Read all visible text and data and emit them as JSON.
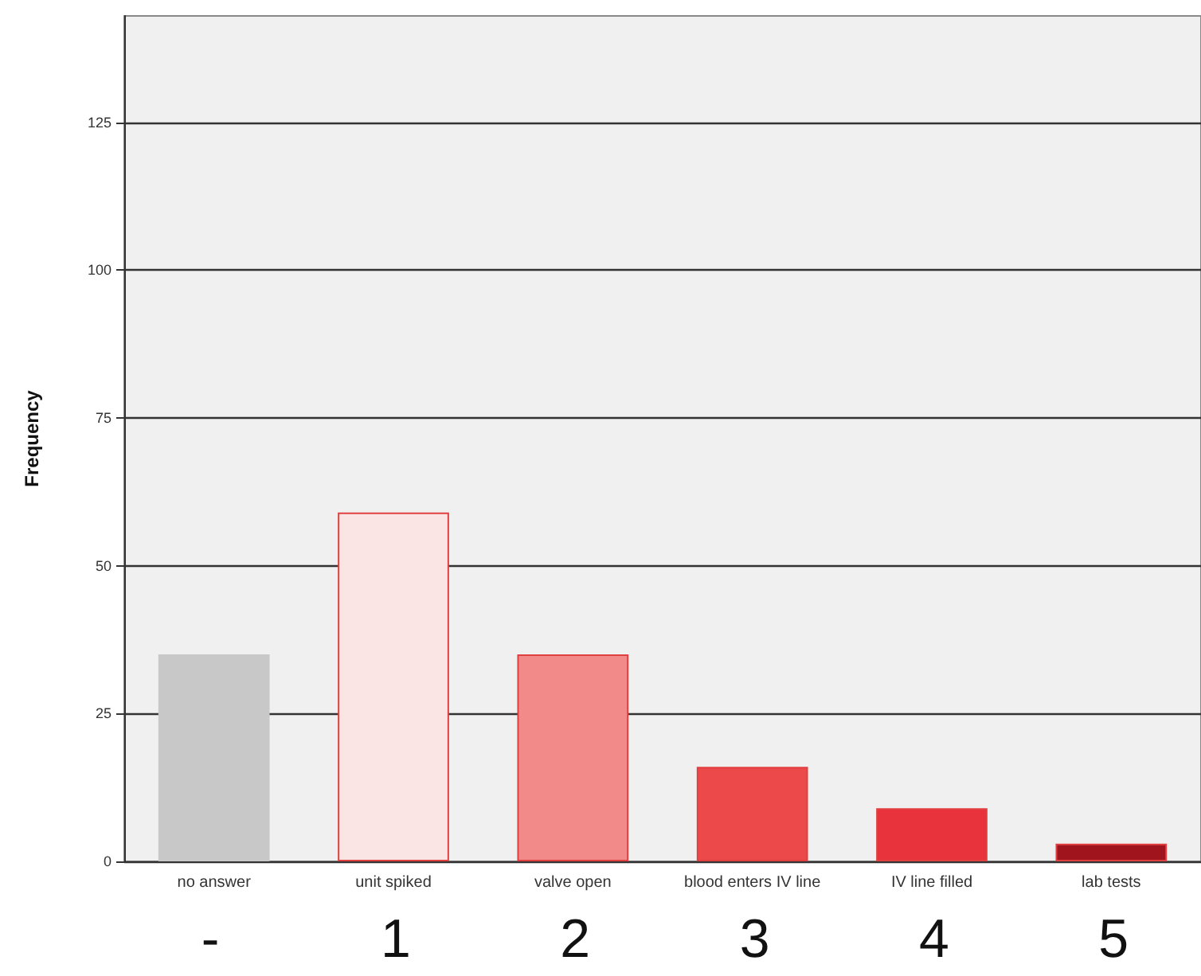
{
  "chart_data": {
    "type": "bar",
    "ylabel": "Frequency",
    "categories": [
      "no answer",
      "unit spiked",
      "valve open",
      "blood enters IV line",
      "IV line filled",
      "lab tests"
    ],
    "values": [
      35,
      59,
      35,
      16,
      9,
      3
    ],
    "colors": [
      "#c8c8c8",
      "#fbe4e4",
      "#f28a8a",
      "#ec4a4a",
      "#e8323c",
      "#a0141e"
    ],
    "ylim": [
      0,
      143
    ],
    "yticks": [
      0,
      25,
      50,
      75,
      100,
      125
    ],
    "grid": "y",
    "annotations": [
      "-",
      "1",
      "2",
      "3",
      "4",
      "5"
    ]
  }
}
